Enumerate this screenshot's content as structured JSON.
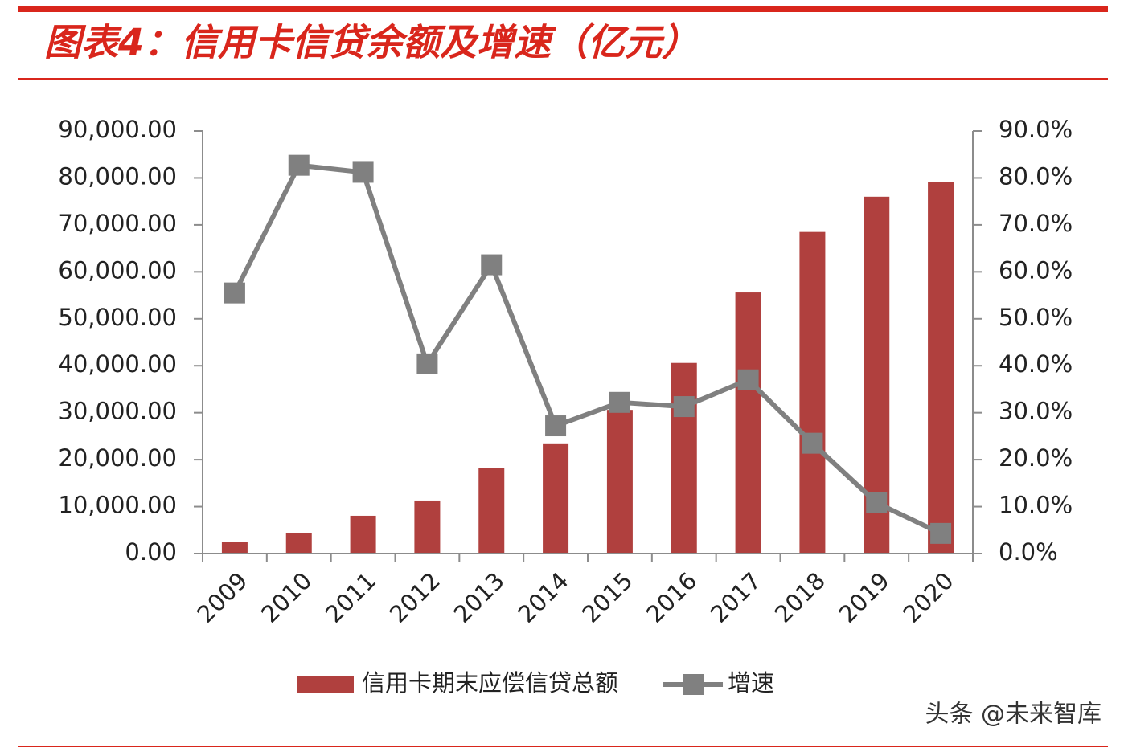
{
  "chart_data": {
    "type": "bar-line",
    "title": "图表4：信用卡信贷余额及增速（亿元）",
    "watermark": "头条 @未来智库",
    "categories": [
      "2009",
      "2010",
      "2011",
      "2012",
      "2013",
      "2014",
      "2015",
      "2016",
      "2017",
      "2018",
      "2019",
      "2020"
    ],
    "series": [
      {
        "name": "信用卡期末应偿信贷总额",
        "type": "bar",
        "color": "#b0403e",
        "axis": "y",
        "values": [
          2400,
          4450,
          8050,
          11300,
          18300,
          23300,
          30600,
          40600,
          55600,
          68500,
          76000,
          79100
        ]
      },
      {
        "name": "增速",
        "type": "line",
        "color": "#808080",
        "axis": "y2",
        "values": [
          55.5,
          82.7,
          81.2,
          40.4,
          61.5,
          27.2,
          32.2,
          31.3,
          37.0,
          23.5,
          10.8,
          4.3
        ]
      }
    ],
    "ylim": [
      0,
      90000
    ],
    "yticks": [
      {
        "value": 0,
        "label": "0.00"
      },
      {
        "value": 10000,
        "label": "10,000.00"
      },
      {
        "value": 20000,
        "label": "20,000.00"
      },
      {
        "value": 30000,
        "label": "30,000.00"
      },
      {
        "value": 40000,
        "label": "40,000.00"
      },
      {
        "value": 50000,
        "label": "50,000.00"
      },
      {
        "value": 60000,
        "label": "60,000.00"
      },
      {
        "value": 70000,
        "label": "70,000.00"
      },
      {
        "value": 80000,
        "label": "80,000.00"
      },
      {
        "value": 90000,
        "label": "90,000.00"
      }
    ],
    "y2lim": [
      0,
      90
    ],
    "y2ticks": [
      {
        "value": 0,
        "label": "0.0%"
      },
      {
        "value": 10,
        "label": "10.0%"
      },
      {
        "value": 20,
        "label": "20.0%"
      },
      {
        "value": 30,
        "label": "30.0%"
      },
      {
        "value": 40,
        "label": "40.0%"
      },
      {
        "value": 50,
        "label": "50.0%"
      },
      {
        "value": 60,
        "label": "60.0%"
      },
      {
        "value": 70,
        "label": "70.0%"
      },
      {
        "value": 80,
        "label": "80.0%"
      },
      {
        "value": 90,
        "label": "90.0%"
      }
    ],
    "legend": "bottom",
    "grid": false
  }
}
